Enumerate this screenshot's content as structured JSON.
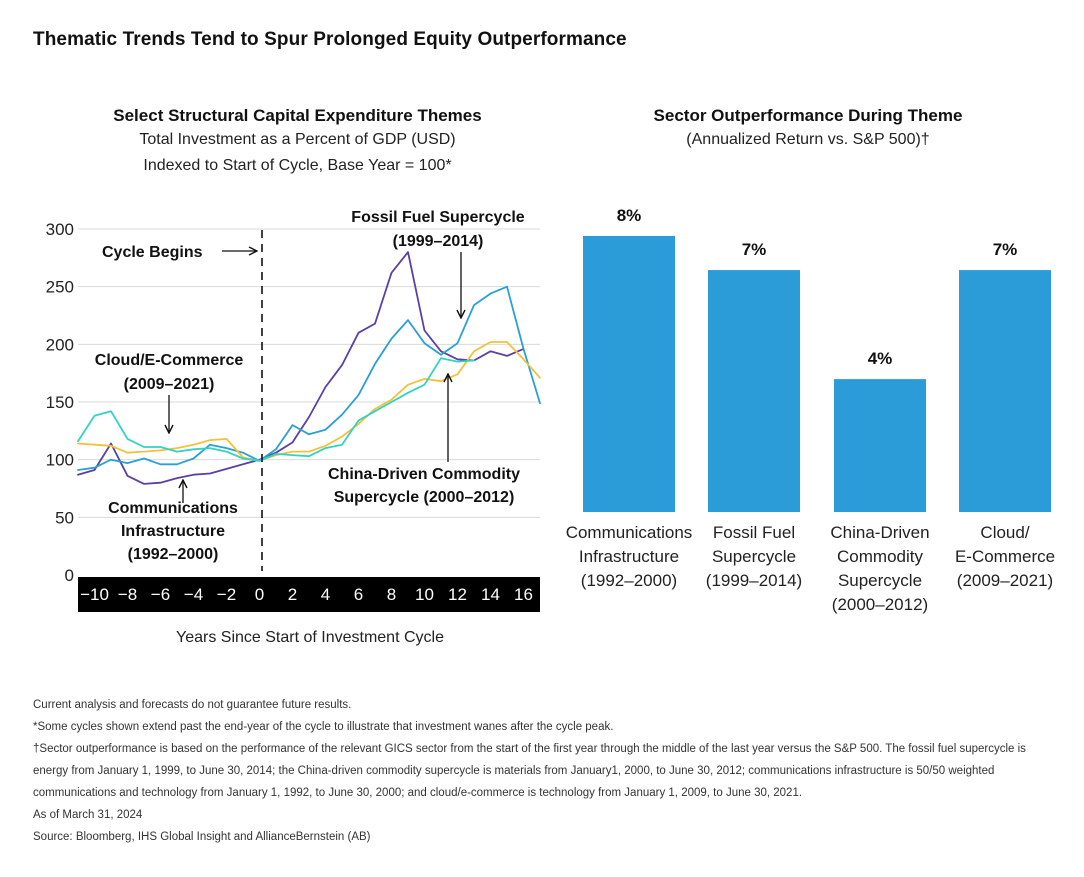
{
  "page_title": "Thematic Trends Tend to Spur Prolonged Equity Outperformance",
  "left_chart": {
    "title": "Select Structural Capital Expenditure Themes",
    "subtitle1": "Total Investment as a Percent of GDP (USD)",
    "subtitle2": "Indexed to Start of Cycle, Base Year = 100*",
    "cycle_label": "Cycle Begins",
    "annotations": {
      "fossil_line1": "Fossil Fuel Supercycle",
      "fossil_line2": "(1999–2014)",
      "cloud_line1": "Cloud/E-Commerce",
      "cloud_line2": "(2009–2021)",
      "comm_line1": "Communications",
      "comm_line2": "Infrastructure",
      "comm_line3": "(1992–2000)",
      "china_line1": "China-Driven Commodity",
      "china_line2": "Supercycle (2000–2012)"
    }
  },
  "right_chart": {
    "title": "Sector Outperformance During Theme",
    "subtitle": "(Annualized Return vs. S&P 500)†"
  },
  "colors": {
    "communications": "#5b3fa6",
    "fossil": "#2a9fd8",
    "china": "#f3c13a",
    "cloud": "#30d3c6",
    "bar": "#2c9cd9",
    "axis_band": "#000000"
  },
  "chart_data": [
    {
      "type": "line",
      "title": "Select Structural Capital Expenditure Themes",
      "xlabel": "Years Since Start of Investment Cycle",
      "ylabel": "",
      "xlim": [
        -11,
        17
      ],
      "ylim": [
        0,
        300
      ],
      "x_ticks": [
        -10,
        -8,
        -6,
        -4,
        -2,
        0,
        2,
        4,
        6,
        8,
        10,
        12,
        14,
        16
      ],
      "x_tick_labels": [
        "−10",
        "−8",
        "−6",
        "−4",
        "−2",
        "0",
        "2",
        "4",
        "6",
        "8",
        "10",
        "12",
        "14",
        "16"
      ],
      "y_ticks": [
        0,
        50,
        100,
        150,
        200,
        250,
        300
      ],
      "grid": "horizontal",
      "series": [
        {
          "key": "communications",
          "x": [
            -11,
            -10,
            -9,
            -8,
            -7,
            -6,
            -5,
            -4,
            -3,
            -2,
            -1,
            0,
            1,
            2,
            3,
            4,
            5,
            6,
            7,
            8,
            9,
            10,
            11,
            12,
            13,
            14,
            15,
            16
          ],
          "values": [
            87,
            91,
            114,
            86,
            79,
            80,
            84,
            87,
            88,
            92,
            96,
            100,
            106,
            115,
            137,
            163,
            182,
            210,
            218,
            262,
            280,
            212,
            194,
            187,
            186,
            194,
            190,
            196
          ]
        },
        {
          "key": "fossil",
          "x": [
            -11,
            -10,
            -9,
            -8,
            -7,
            -6,
            -5,
            -4,
            -3,
            -2,
            -1,
            0,
            1,
            2,
            3,
            4,
            5,
            6,
            7,
            8,
            9,
            10,
            11,
            12,
            13,
            14,
            15,
            16,
            17
          ],
          "values": [
            91,
            93,
            100,
            97,
            101,
            96,
            96,
            101,
            113,
            110,
            106,
            99,
            109,
            130,
            122,
            126,
            139,
            156,
            183,
            205,
            221,
            201,
            191,
            201,
            234,
            244,
            250,
            196,
            149
          ]
        },
        {
          "key": "china",
          "x": [
            -11,
            -10,
            -9,
            -8,
            -7,
            -6,
            -5,
            -4,
            -3,
            -2,
            -1,
            0,
            1,
            2,
            3,
            4,
            5,
            6,
            7,
            8,
            9,
            10,
            11,
            12,
            13,
            14,
            15,
            16,
            17
          ],
          "values": [
            114,
            113,
            112,
            106,
            107,
            108,
            110,
            113,
            117,
            118,
            102,
            99,
            104,
            107,
            107,
            112,
            120,
            131,
            144,
            152,
            165,
            170,
            168,
            174,
            194,
            202,
            202,
            187,
            171
          ]
        },
        {
          "key": "cloud",
          "x": [
            -11,
            -10,
            -9,
            -8,
            -7,
            -6,
            -5,
            -4,
            -3,
            -2,
            -1,
            0,
            1,
            2,
            3,
            4,
            5,
            6,
            7,
            8,
            9,
            10,
            11,
            12,
            13
          ],
          "values": [
            116,
            138,
            142,
            118,
            111,
            111,
            107,
            109,
            110,
            107,
            101,
            99,
            105,
            104,
            103,
            110,
            113,
            134,
            142,
            150,
            158,
            165,
            188,
            185,
            186
          ]
        }
      ]
    },
    {
      "type": "bar",
      "title": "Sector Outperformance During Theme",
      "subtitle": "(Annualized Return vs. S&P 500)†",
      "categories": [
        [
          "Communications",
          "Infrastructure",
          "(1992–2000)"
        ],
        [
          "Fossil Fuel",
          "Supercycle",
          "(1999–2014)"
        ],
        [
          "China-Driven",
          "Commodity",
          "Supercycle",
          "(2000–2012)"
        ],
        [
          "Cloud/",
          "E-Commerce",
          "(2009–2021)"
        ]
      ],
      "values": [
        8.1,
        7.1,
        3.9,
        7.1
      ],
      "value_labels": [
        "8%",
        "7%",
        "4%",
        "7%"
      ],
      "ylim": [
        0,
        8.1
      ]
    }
  ],
  "footnotes": [
    "Current analysis and forecasts do not guarantee future results.",
    "*Some cycles shown extend past the end-year of the cycle to illustrate that investment wanes after the cycle peak.",
    "†Sector outperformance is based on the performance of the relevant GICS sector from the start of the first year through the middle of the last year versus the S&P 500. The fossil fuel supercycle is energy from January 1, 1999, to June 30, 2014; the China-driven commodity supercycle is materials from January1, 2000, to June 30, 2012; communications infrastructure is 50/50 weighted communications and technology from January 1, 1992, to June 30, 2000; and cloud/e-commerce is technology from January 1, 2009, to June 30, 2021.",
    "As of March 31, 2024",
    "Source: Bloomberg, IHS Global Insight and AllianceBernstein (AB)"
  ]
}
